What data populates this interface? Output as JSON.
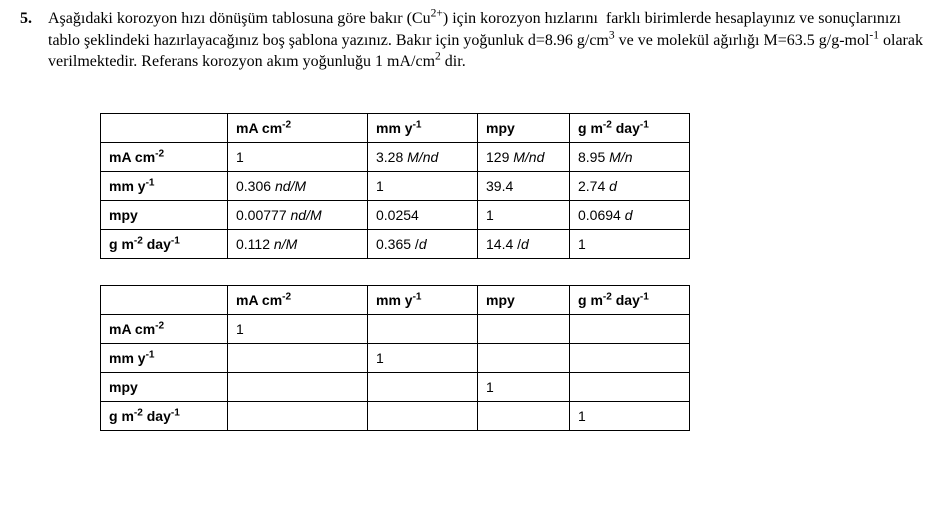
{
  "question": {
    "number": "5.",
    "text_html": "Aşağıdaki korozyon hızı dönüşüm tablosuna göre bakır (Cu<sup>2+</sup>) için korozyon hızlarını&nbsp; farklı birimlerde hesaplayınız ve sonuçlarınızı tablo şeklindeki hazırlayacağınız boş şablona yazınız. Bakır için yoğunluk d=8.96 g/cm<sup>3</sup> ve ve molekül ağırlığı M=63.5 g/g-mol<sup>-1</sup> olarak verilmektedir. Referans korozyon akım yoğunluğu 1 mA/cm<sup>2</sup> dir."
  },
  "headers": {
    "lead": "",
    "a_html": "mA cm<sup>-2</sup>",
    "b_html": "mm y<sup>-1</sup>",
    "c_html": "mpy",
    "d_html": "g m<sup>-2</sup> day<sup>-1</sup>"
  },
  "row_labels": {
    "r1_html": "mA cm<sup>-2</sup>",
    "r2_html": "mm y<sup>-1</sup>",
    "r3_html": "mpy",
    "r4_html": "g m<sup>-2</sup> day<sup>-1</sup>"
  },
  "table1": {
    "r1": {
      "a_html": "1",
      "b_html": "3.28 <span class=\"ital\">M/nd</span>",
      "c_html": "129 <span class=\"ital\">M/nd</span>",
      "d_html": "8.95 <span class=\"ital\">M/n</span>"
    },
    "r2": {
      "a_html": "0.306 <span class=\"ital\">nd/M</span>",
      "b_html": "1",
      "c_html": "39.4",
      "d_html": "2.74 <span class=\"ital\">d</span>"
    },
    "r3": {
      "a_html": "0.00777 <span class=\"ital\">nd/M</span>",
      "b_html": "0.0254",
      "c_html": "1",
      "d_html": "0.0694 <span class=\"ital\">d</span>"
    },
    "r4": {
      "a_html": "0.112 <span class=\"ital\">n/M</span>",
      "b_html": "0.365 /<span class=\"ital\">d</span>",
      "c_html": "14.4 /<span class=\"ital\">d</span>",
      "d_html": "1"
    }
  },
  "table2": {
    "r1": {
      "a_html": "1",
      "b_html": "",
      "c_html": "",
      "d_html": ""
    },
    "r2": {
      "a_html": "",
      "b_html": "1",
      "c_html": "",
      "d_html": ""
    },
    "r3": {
      "a_html": "",
      "b_html": "",
      "c_html": "1",
      "d_html": ""
    },
    "r4": {
      "a_html": "",
      "b_html": "",
      "c_html": "",
      "d_html": "1"
    }
  }
}
